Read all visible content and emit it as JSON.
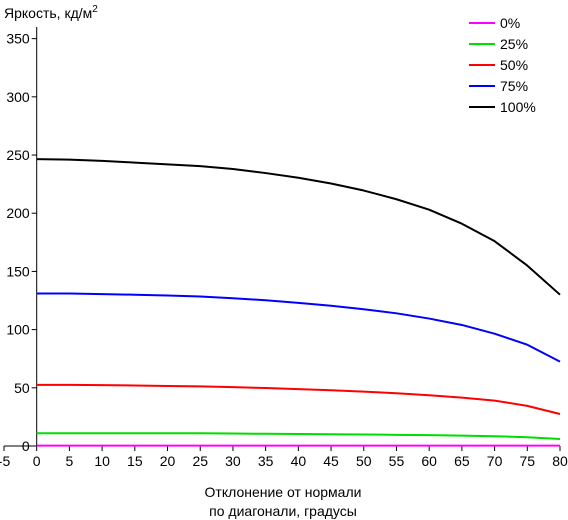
{
  "chart_data": {
    "type": "line",
    "ylabel_main": "Яркость, кд/м",
    "ylabel_sup": "2",
    "xlabel_line1": "Отклонение от нормали",
    "xlabel_line2": "по диагонали, градусы",
    "xlim": [
      -5,
      80
    ],
    "ylim": [
      0,
      360
    ],
    "xticks": [
      -5,
      0,
      5,
      10,
      15,
      20,
      25,
      30,
      35,
      40,
      45,
      50,
      55,
      60,
      65,
      70,
      75,
      80
    ],
    "yticks": [
      0,
      50,
      100,
      150,
      200,
      250,
      300,
      350
    ],
    "x": [
      0,
      5,
      10,
      15,
      20,
      25,
      30,
      35,
      40,
      45,
      50,
      55,
      60,
      65,
      70,
      75,
      80
    ],
    "legend_position": "top-right",
    "series": [
      {
        "name": "0%",
        "color": "#ff00ff",
        "values": [
          0.3,
          0.3,
          0.3,
          0.3,
          0.3,
          0.3,
          0.3,
          0.3,
          0.3,
          0.3,
          0.3,
          0.3,
          0.3,
          0.3,
          0.3,
          0.3,
          0.3
        ]
      },
      {
        "name": "25%",
        "color": "#00dd00",
        "values": [
          11,
          11,
          11,
          11,
          11,
          11,
          10.7,
          10.5,
          10.3,
          10.1,
          9.9,
          9.6,
          9.3,
          8.9,
          8.4,
          7.5,
          6
        ]
      },
      {
        "name": "50%",
        "color": "#ff0000",
        "values": [
          52.5,
          52.5,
          52.3,
          52,
          51.6,
          51.2,
          50.6,
          49.8,
          48.9,
          47.9,
          46.7,
          45.3,
          43.6,
          41.6,
          39,
          34.5,
          27.5
        ]
      },
      {
        "name": "75%",
        "color": "#0000ff",
        "values": [
          131,
          131,
          130.5,
          130,
          129.3,
          128.5,
          127,
          125.2,
          123,
          120.5,
          117.5,
          114,
          109.5,
          104,
          96.5,
          87,
          72.5
        ]
      },
      {
        "name": "100%",
        "color": "#000000",
        "values": [
          246.5,
          246,
          245,
          243.5,
          242,
          240.5,
          238,
          234.5,
          230.5,
          225.5,
          219.5,
          212,
          203,
          191,
          176,
          155,
          130
        ]
      }
    ]
  }
}
